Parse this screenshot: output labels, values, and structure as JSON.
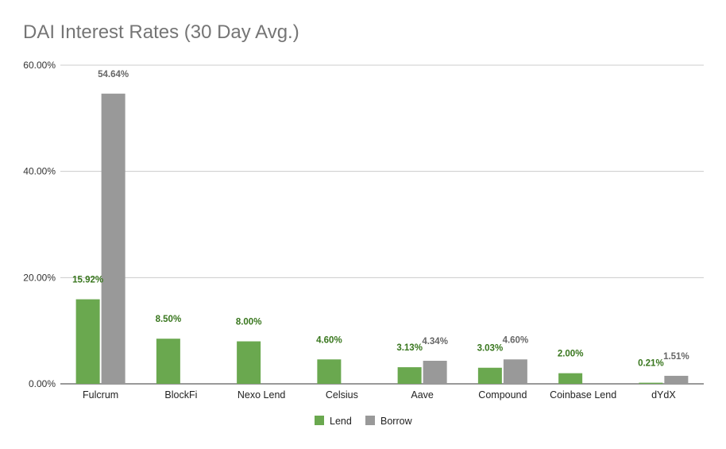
{
  "chart_data": {
    "type": "bar",
    "title": "DAI Interest Rates (30 Day Avg.)",
    "xlabel": "",
    "ylabel": "",
    "ylim": [
      0,
      60
    ],
    "yticks": [
      0,
      20,
      40,
      60
    ],
    "ytick_labels": [
      "0.00%",
      "20.00%",
      "40.00%",
      "60.00%"
    ],
    "categories": [
      "Fulcrum",
      "BlockFi",
      "Nexo Lend",
      "Celsius",
      "Aave",
      "Compound",
      "Coinbase Lend",
      "dYdX"
    ],
    "series": [
      {
        "name": "Lend",
        "color": "#6aa84f",
        "values": [
          15.92,
          8.5,
          8.0,
          4.6,
          3.13,
          3.03,
          2.0,
          0.21
        ],
        "labels": [
          "15.92%",
          "8.50%",
          "8.00%",
          "4.60%",
          "3.13%",
          "3.03%",
          "2.00%",
          "0.21%"
        ]
      },
      {
        "name": "Borrow",
        "color": "#999999",
        "values": [
          54.64,
          null,
          null,
          null,
          4.34,
          4.6,
          null,
          1.51
        ],
        "labels": [
          "54.64%",
          null,
          null,
          null,
          "4.34%",
          "4.60%",
          null,
          "1.51%"
        ]
      }
    ],
    "label_colors": {
      "Lend": "#38761d",
      "Borrow": "#666666"
    },
    "grid": true,
    "legend_position": "bottom"
  }
}
